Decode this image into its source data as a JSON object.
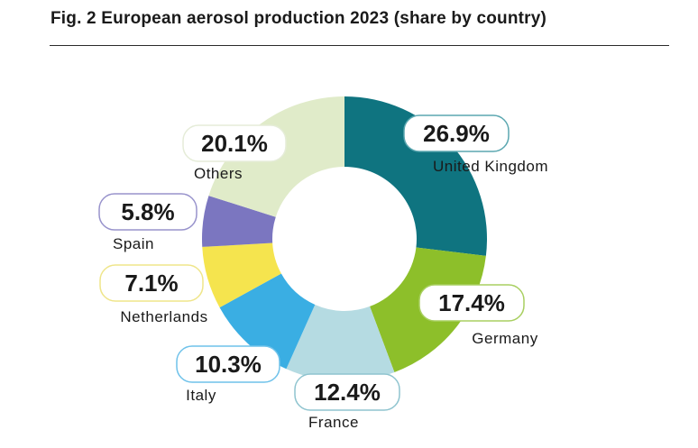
{
  "title": "Fig. 2 European aerosol production 2023 (share by country)",
  "chart_data": {
    "type": "pie",
    "donut": true,
    "title": "Fig. 2 European aerosol production 2023 (share by country)",
    "unit": "%",
    "slices": [
      {
        "label": "United Kingdom",
        "value": 26.9,
        "value_label": "26.9%",
        "color": "#0f7480",
        "box_border": "#5ba7b0"
      },
      {
        "label": "Germany",
        "value": 17.4,
        "value_label": "17.4%",
        "color": "#8dbf2a",
        "box_border": "#a8cf60"
      },
      {
        "label": "France",
        "value": 12.4,
        "value_label": "12.4%",
        "color": "#b5dbe2",
        "box_border": "#8fc4cf"
      },
      {
        "label": "Italy",
        "value": 10.3,
        "value_label": "10.3%",
        "color": "#3aaee3",
        "box_border": "#6fc2ea"
      },
      {
        "label": "Netherlands",
        "value": 7.1,
        "value_label": "7.1%",
        "color": "#f5e44e",
        "box_border": "#efe58a"
      },
      {
        "label": "Spain",
        "value": 5.8,
        "value_label": "5.8%",
        "color": "#7b76c0",
        "box_border": "#9893cc"
      },
      {
        "label": "Others",
        "value": 20.1,
        "value_label": "20.1%",
        "color": "#e0ebc9",
        "box_border": "#e5ecd8"
      }
    ]
  }
}
